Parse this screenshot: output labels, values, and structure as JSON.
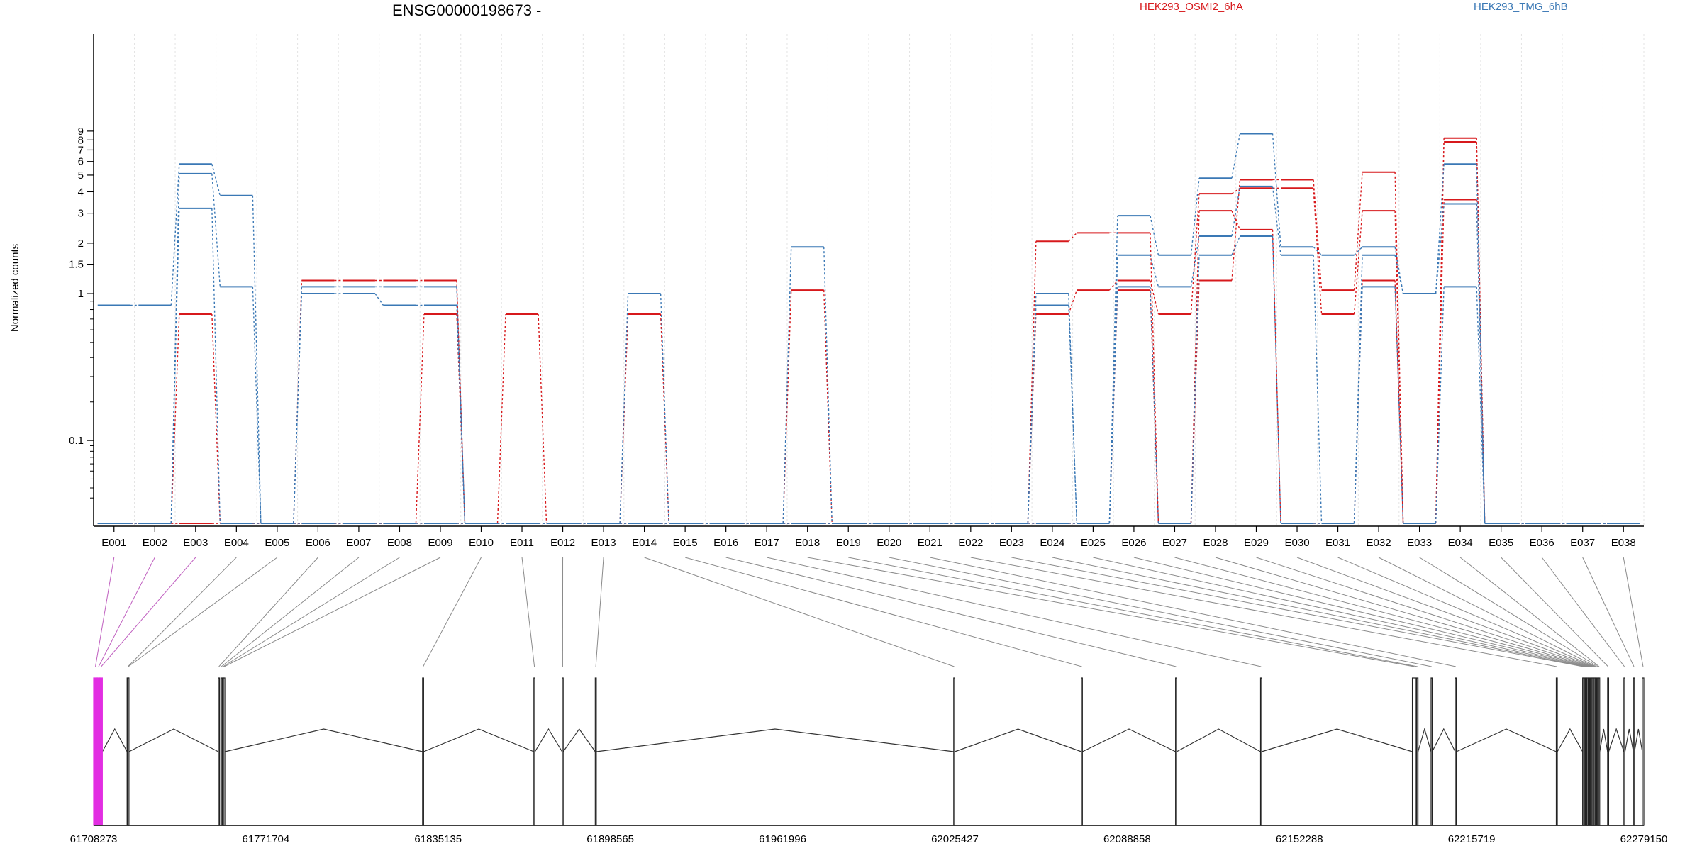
{
  "header": {
    "gene_title": "ENSG00000198673 -",
    "legend": [
      {
        "label": "HEK293_OSMI2_6hA",
        "color": "#d7191c"
      },
      {
        "label": "HEK293_TMG_6hB",
        "color": "#3a78b5"
      }
    ]
  },
  "chart_data": {
    "type": "line",
    "title": "ENSG00000198673 -",
    "ylabel": "Normalized counts",
    "xlabel": "",
    "y_scale": "log (offset)",
    "y_ticks": [
      "0.1",
      "1",
      "1.5",
      "2",
      "3",
      "4",
      "5",
      "6",
      "7",
      "8",
      "9"
    ],
    "grid": "vertical dotted",
    "legend_placement": "top",
    "categories": [
      "E001",
      "E002",
      "E003",
      "E004",
      "E005",
      "E006",
      "E007",
      "E008",
      "E009",
      "E010",
      "E011",
      "E012",
      "E013",
      "E014",
      "E015",
      "E016",
      "E017",
      "E018",
      "E019",
      "E020",
      "E021",
      "E022",
      "E023",
      "E024",
      "E025",
      "E026",
      "E027",
      "E028",
      "E029",
      "E030",
      "E031",
      "E032",
      "E033",
      "E034",
      "E035",
      "E036",
      "E037",
      "E038"
    ],
    "series": [
      {
        "name": "HEK293_OSMI2_6hA",
        "color": "#d7191c",
        "values": [
          0,
          0,
          0.75,
          0,
          0,
          1.2,
          1.2,
          1.2,
          1.2,
          0,
          0.75,
          0,
          0,
          0.75,
          0,
          0,
          0,
          1.05,
          0,
          0,
          0,
          0,
          0,
          2.05,
          2.3,
          2.3,
          0,
          1.2,
          4.7,
          4.7,
          1.05,
          5.2,
          0,
          8.2,
          0,
          0,
          0,
          0
        ]
      },
      {
        "name": "",
        "color": "#d7191c",
        "values": [
          0,
          0,
          0,
          0,
          0,
          0,
          0,
          0,
          0.75,
          0,
          0,
          0,
          0,
          0,
          0,
          0,
          0,
          0,
          0,
          0,
          0,
          0,
          0,
          0.75,
          1.05,
          1.2,
          0.75,
          3.9,
          4.2,
          4.2,
          0.75,
          3.1,
          0,
          7.8,
          0,
          0,
          0,
          0
        ]
      },
      {
        "name": "",
        "color": "#d7191c",
        "values": [
          0,
          0,
          0,
          0,
          0,
          0,
          0,
          0,
          0,
          0,
          0,
          0,
          0,
          0,
          0,
          0,
          0,
          0,
          0,
          0,
          0,
          0,
          0,
          0,
          0,
          1.05,
          0,
          3.1,
          2.4,
          0,
          0,
          1.2,
          0,
          3.6,
          0,
          0,
          0,
          0
        ]
      },
      {
        "name": "HEK293_TMG_6hB",
        "color": "#3a78b5",
        "values": [
          0.85,
          0.85,
          5.8,
          3.8,
          0,
          1.1,
          1.1,
          1.1,
          1.1,
          0,
          0,
          0,
          0,
          1.0,
          0,
          0,
          0,
          1.9,
          0,
          0,
          0,
          0,
          0,
          1.0,
          0,
          2.9,
          1.7,
          4.8,
          8.7,
          1.9,
          1.7,
          1.9,
          1.0,
          5.8,
          0,
          0,
          0,
          0
        ]
      },
      {
        "name": "",
        "color": "#3a78b5",
        "values": [
          0,
          0,
          5.1,
          1.1,
          0,
          1.0,
          1.0,
          0.85,
          0.85,
          0,
          0,
          0,
          0,
          0,
          0,
          0,
          0,
          0,
          0,
          0,
          0,
          0,
          0,
          0.85,
          0,
          1.7,
          1.1,
          2.2,
          4.3,
          1.7,
          0,
          1.7,
          1.0,
          3.4,
          0,
          0,
          0,
          0
        ]
      },
      {
        "name": "",
        "color": "#3a78b5",
        "values": [
          0,
          0,
          3.2,
          0,
          0,
          0,
          0,
          0,
          0,
          0,
          0,
          0,
          0,
          0,
          0,
          0,
          0,
          0,
          0,
          0,
          0,
          0,
          0,
          0,
          0,
          1.1,
          0,
          1.7,
          2.2,
          0,
          0,
          1.1,
          0,
          1.1,
          0,
          0,
          0,
          0
        ]
      }
    ]
  },
  "gene_model": {
    "coordinate_labels": [
      "61708273",
      "61771704",
      "61835135",
      "61898565",
      "61961996",
      "62025427",
      "62088858",
      "62152288",
      "62215719",
      "62279150"
    ],
    "coord_min": 61708273,
    "coord_max": 62279150,
    "highlight_color": "#e22ee2",
    "exons": [
      {
        "id": "E001",
        "start": 61708273,
        "end": 61709600,
        "highlight": true
      },
      {
        "id": "E002",
        "start": 61709600,
        "end": 61710600,
        "highlight": true
      },
      {
        "id": "E003",
        "start": 61710600,
        "end": 61711500,
        "highlight": true
      },
      {
        "id": "E004",
        "start": 61720600,
        "end": 61721200,
        "highlight": false
      },
      {
        "id": "E005",
        "start": 61720800,
        "end": 61721300,
        "highlight": false
      },
      {
        "id": "E006",
        "start": 61754200,
        "end": 61754600,
        "highlight": false
      },
      {
        "id": "E007",
        "start": 61755100,
        "end": 61755500,
        "highlight": false
      },
      {
        "id": "E008",
        "start": 61755700,
        "end": 61756100,
        "highlight": false
      },
      {
        "id": "E009",
        "start": 61756100,
        "end": 61756600,
        "highlight": false
      },
      {
        "id": "E010",
        "start": 61829400,
        "end": 61829800,
        "highlight": false
      },
      {
        "id": "E011",
        "start": 61870400,
        "end": 61870800,
        "highlight": false
      },
      {
        "id": "E012",
        "start": 61880800,
        "end": 61881200,
        "highlight": false
      },
      {
        "id": "E013",
        "start": 61893000,
        "end": 61893400,
        "highlight": false
      },
      {
        "id": "E014",
        "start": 62025000,
        "end": 62025400,
        "highlight": false
      },
      {
        "id": "E015",
        "start": 62072000,
        "end": 62072400,
        "highlight": false
      },
      {
        "id": "E016",
        "start": 62106700,
        "end": 62107100,
        "highlight": false
      },
      {
        "id": "E017",
        "start": 62138000,
        "end": 62138400,
        "highlight": false
      },
      {
        "id": "E018",
        "start": 62193900,
        "end": 62195300,
        "highlight": false
      },
      {
        "id": "E019",
        "start": 62195600,
        "end": 62196000,
        "highlight": false
      },
      {
        "id": "E020",
        "start": 62200800,
        "end": 62201200,
        "highlight": false
      },
      {
        "id": "E021",
        "start": 62209700,
        "end": 62210100,
        "highlight": false
      },
      {
        "id": "E022",
        "start": 62246900,
        "end": 62247300,
        "highlight": false
      },
      {
        "id": "E023",
        "start": 62256600,
        "end": 62257000,
        "highlight": false
      },
      {
        "id": "E024",
        "start": 62257000,
        "end": 62257400,
        "highlight": false
      },
      {
        "id": "E025",
        "start": 62257600,
        "end": 62258000,
        "highlight": false
      },
      {
        "id": "E026",
        "start": 62258200,
        "end": 62258600,
        "highlight": false
      },
      {
        "id": "E027",
        "start": 62258800,
        "end": 62259200,
        "highlight": false
      },
      {
        "id": "E028",
        "start": 62259400,
        "end": 62259800,
        "highlight": false
      },
      {
        "id": "E029",
        "start": 62259900,
        "end": 62260300,
        "highlight": false
      },
      {
        "id": "E030",
        "start": 62260400,
        "end": 62260800,
        "highlight": false
      },
      {
        "id": "E031",
        "start": 62260900,
        "end": 62261300,
        "highlight": false
      },
      {
        "id": "E032",
        "start": 62261400,
        "end": 62261800,
        "highlight": false
      },
      {
        "id": "E033",
        "start": 62262000,
        "end": 62262400,
        "highlight": false
      },
      {
        "id": "E034",
        "start": 62262500,
        "end": 62262900,
        "highlight": false
      },
      {
        "id": "E035",
        "start": 62265800,
        "end": 62266200,
        "highlight": false
      },
      {
        "id": "E036",
        "start": 62271800,
        "end": 62272200,
        "highlight": false
      },
      {
        "id": "E037",
        "start": 62275300,
        "end": 62275700,
        "highlight": false
      },
      {
        "id": "E038",
        "start": 62278600,
        "end": 62279150,
        "highlight": false
      }
    ],
    "exon_groups": [
      {
        "start": 61708273,
        "end": 61711500,
        "filled": true
      },
      {
        "start": 61720600,
        "end": 61721300,
        "filled": false
      },
      {
        "start": 61754200,
        "end": 61756600,
        "filled": false
      },
      {
        "start": 61829400,
        "end": 61829800,
        "filled": false
      },
      {
        "start": 61870400,
        "end": 61870800,
        "filled": false
      },
      {
        "start": 61880800,
        "end": 61881200,
        "filled": false
      },
      {
        "start": 61893000,
        "end": 61893400,
        "filled": false
      },
      {
        "start": 62025000,
        "end": 62025400,
        "filled": false
      },
      {
        "start": 62072000,
        "end": 62072400,
        "filled": false
      },
      {
        "start": 62106700,
        "end": 62107100,
        "filled": false
      },
      {
        "start": 62138000,
        "end": 62138400,
        "filled": false
      },
      {
        "start": 62193900,
        "end": 62195300,
        "filled": false
      },
      {
        "start": 62195600,
        "end": 62196000,
        "filled": false
      },
      {
        "start": 62200800,
        "end": 62201200,
        "filled": false
      },
      {
        "start": 62209700,
        "end": 62210100,
        "filled": false
      },
      {
        "start": 62246900,
        "end": 62247300,
        "filled": false
      },
      {
        "start": 62256600,
        "end": 62262900,
        "filled": false
      },
      {
        "start": 62265800,
        "end": 62266200,
        "filled": false
      },
      {
        "start": 62271800,
        "end": 62272200,
        "filled": false
      },
      {
        "start": 62275300,
        "end": 62275700,
        "filled": false
      },
      {
        "start": 62278600,
        "end": 62279150,
        "filled": false
      }
    ]
  }
}
